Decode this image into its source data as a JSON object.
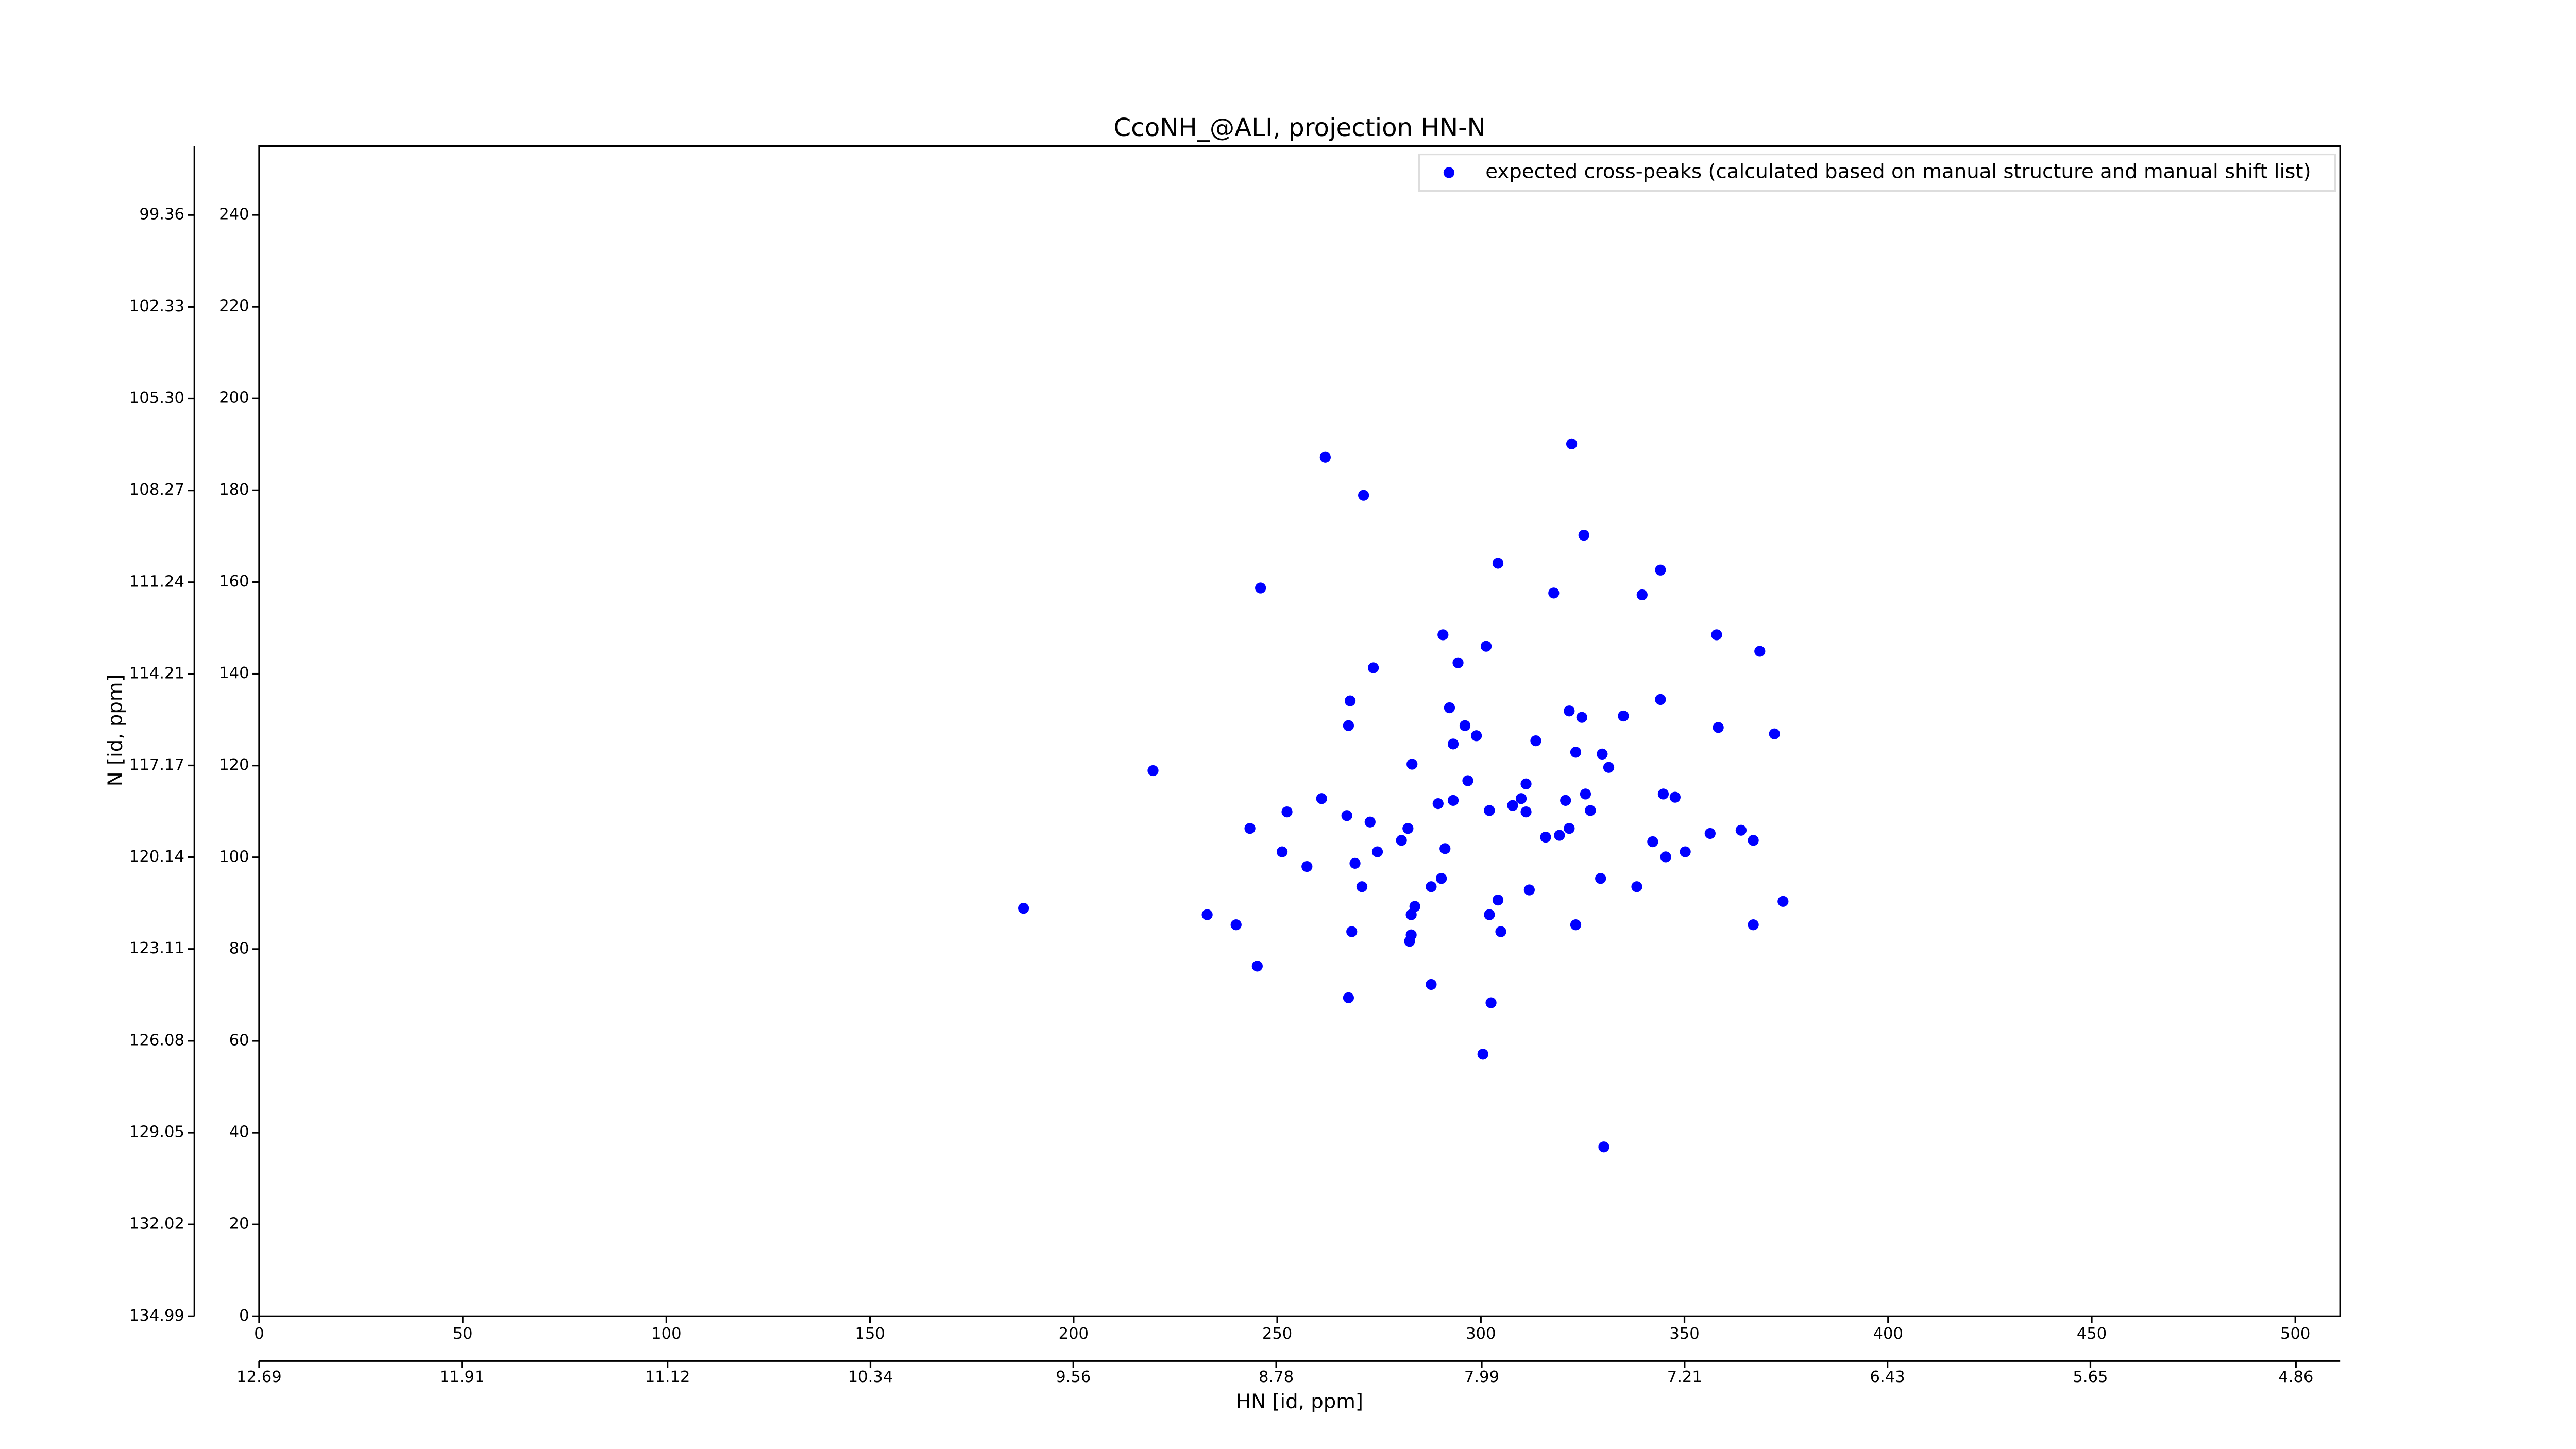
{
  "chart_data": {
    "type": "scatter",
    "title": "CcoNH_@ALI, projection HN-N",
    "xlabel": "HN [id, ppm]",
    "ylabel": "N [id, ppm]",
    "xlim": [
      0,
      511
    ],
    "ylim": [
      0,
      255
    ],
    "xticks": [
      0,
      50,
      100,
      150,
      200,
      250,
      300,
      350,
      400,
      450,
      500
    ],
    "yticks": [
      0,
      20,
      40,
      60,
      80,
      100,
      120,
      140,
      160,
      180,
      200,
      220,
      240
    ],
    "x2lim": [
      12.69,
      4.69
    ],
    "x2ticks": [
      12.69,
      11.91,
      11.12,
      10.34,
      9.56,
      8.78,
      7.99,
      7.21,
      6.43,
      5.65,
      4.86
    ],
    "y2lim": [
      134.99,
      97.13
    ],
    "y2ticks": [
      134.99,
      132.02,
      129.05,
      126.08,
      123.11,
      120.14,
      117.17,
      114.21,
      111.24,
      108.27,
      {
        "value": 105.3,
        "label": "105.30"
      },
      102.33,
      99.36
    ],
    "legend": "upper right",
    "series": [
      {
        "name": "expected cross-peaks (calculated based on manual structure and manual shift list)",
        "color": "#0000ff",
        "x": [
          187.7,
          219.5,
          245.9,
          261.8,
          271.2,
          322.3,
          325.3,
          304.2,
          317.9,
          339.6,
          344.1,
          357.9,
          368.5,
          290.7,
          301.3,
          294.4,
          273.6,
          267.9,
          267.5,
          292.3,
          296.1,
          298.9,
          293.2,
          283.1,
          321.7,
          324.8,
          335.0,
          344.1,
          313.5,
          323.3,
          329.8,
          331.4,
          358.3,
          372.1,
          296.8,
          311.1,
          309.9,
          307.8,
          311.1,
          325.7,
          320.8,
          326.9,
          293.2,
          289.5,
          302.1,
          344.8,
          347.7,
          260.9,
          252.4,
          243.3,
          267.1,
          272.8,
          319.3,
          315.9,
          321.7,
          282.1,
          280.5,
          291.2,
          274.6,
          251.2,
          257.3,
          269.1,
          350.2,
          345.4,
          342.2,
          356.3,
          363.9,
          366.9,
          329.4,
          338.3,
          270.8,
          287.8,
          311.9,
          290.3,
          283.8,
          282.9,
          304.2,
          302.1,
          304.9,
          323.3,
          374.2,
          366.9,
          232.8,
          239.9,
          268.3,
          282.9,
          282.5,
          245.1,
          287.8,
          267.5,
          302.5,
          300.5,
          330.2
        ],
        "y": [
          88.9,
          118.9,
          158.7,
          187.2,
          178.9,
          190.1,
          170.2,
          164.1,
          157.6,
          157.2,
          162.6,
          148.5,
          144.9,
          148.5,
          146.0,
          142.4,
          141.3,
          134.1,
          128.7,
          132.6,
          128.7,
          126.5,
          124.7,
          120.3,
          131.9,
          130.5,
          130.8,
          134.4,
          125.4,
          122.9,
          122.5,
          119.6,
          128.3,
          126.9,
          116.7,
          116.0,
          112.8,
          111.3,
          109.9,
          113.8,
          112.4,
          110.2,
          112.4,
          111.7,
          110.2,
          113.8,
          113.1,
          112.8,
          109.9,
          106.3,
          109.1,
          107.7,
          104.8,
          104.4,
          106.3,
          106.3,
          103.7,
          101.9,
          101.2,
          101.2,
          98.0,
          98.7,
          101.2,
          100.1,
          103.4,
          105.2,
          105.9,
          103.7,
          95.4,
          93.6,
          93.6,
          93.6,
          92.9,
          95.4,
          89.3,
          87.5,
          90.7,
          87.5,
          83.8,
          85.3,
          90.4,
          85.3,
          87.5,
          85.3,
          83.8,
          83.1,
          81.7,
          76.3,
          72.3,
          69.4,
          68.3,
          57.1,
          36.9
        ]
      }
    ]
  }
}
